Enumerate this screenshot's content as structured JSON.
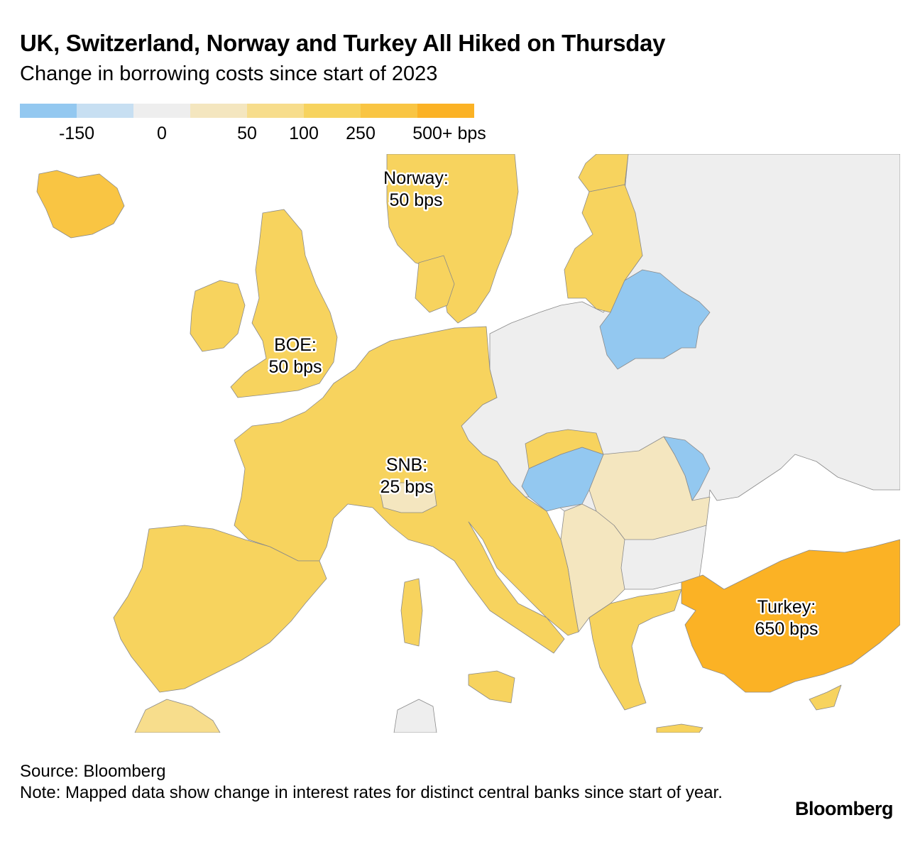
{
  "title": "UK, Switzerland, Norway and Turkey All Hiked on Thursday",
  "subtitle": "Change in borrowing costs since start of 2023",
  "legend": {
    "colors": [
      "#93c8f0",
      "#c7dff2",
      "#eeeeee",
      "#f4e6bf",
      "#f7dd8c",
      "#f7d35e",
      "#f9c543",
      "#fbb225"
    ],
    "labels": [
      "-150",
      "0",
      "50",
      "100",
      "250",
      "500+ bps"
    ]
  },
  "annotations": {
    "norway_name": "Norway:",
    "norway_value": "50 bps",
    "boe_name": "BOE:",
    "boe_value": "50 bps",
    "snb_name": "SNB:",
    "snb_value": "25 bps",
    "turkey_name": "Turkey:",
    "turkey_value": "650 bps"
  },
  "footer": {
    "source": "Source: Bloomberg",
    "note": "Note: Mapped data show change in interest rates for distinct central banks since start of year."
  },
  "logo": "Bloomberg",
  "fill_colors": {
    "land_grey": "#eeeeee",
    "hike_50": "#f7d35e",
    "hike_25": "#f4e6bf",
    "hike_light": "#f7dd8c",
    "hike_iceland": "#f9c543",
    "hike_turkey": "#fbb225",
    "cut_blue": "#93c8f0",
    "border": "#8a8a8a"
  }
}
